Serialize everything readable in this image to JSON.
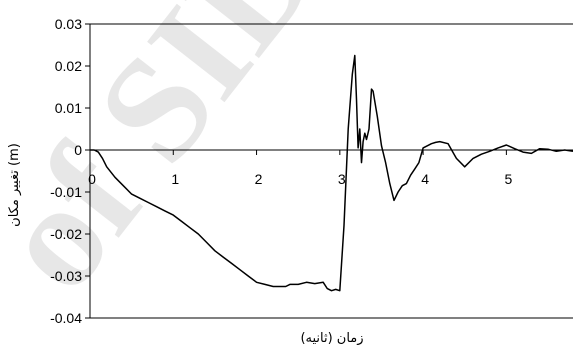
{
  "chart_data": {
    "type": "line",
    "watermark": "of SID",
    "ylabel": "تغییر مکان (m)",
    "xlabel": "زمان (ثانیه)",
    "xlim": [
      0,
      5.8
    ],
    "ylim": [
      -0.04,
      0.03
    ],
    "xticks": [
      0,
      1,
      2,
      3,
      4,
      5
    ],
    "xtick_labels": [
      "0",
      "1",
      "2",
      "3",
      "4",
      "5"
    ],
    "yticks": [
      0.03,
      0.02,
      0.01,
      0,
      -0.01,
      -0.02,
      -0.03,
      -0.04
    ],
    "ytick_labels": [
      "0.03",
      "0.02",
      "0.01",
      "0",
      "-0.01",
      "-0.02",
      "-0.03",
      "-0.04"
    ],
    "grid": false,
    "line_color": "#000000",
    "series": [
      {
        "x": [
          0,
          0.05,
          0.1,
          0.15,
          0.2,
          0.3,
          0.4,
          0.5,
          0.6,
          0.7,
          0.8,
          0.9,
          1.0,
          1.1,
          1.2,
          1.3,
          1.4,
          1.5,
          1.6,
          1.7,
          1.8,
          1.9,
          2.0,
          2.1,
          2.2,
          2.3,
          2.35,
          2.4,
          2.5,
          2.6,
          2.7,
          2.8,
          2.85,
          2.9,
          2.95,
          3.0,
          3.05,
          3.1,
          3.15,
          3.18,
          3.2,
          3.22,
          3.24,
          3.26,
          3.28,
          3.3,
          3.32,
          3.35,
          3.38,
          3.4,
          3.45,
          3.5,
          3.55,
          3.6,
          3.65,
          3.7,
          3.75,
          3.8,
          3.85,
          3.9,
          3.95,
          4.0,
          4.05,
          4.1,
          4.15,
          4.2,
          4.3,
          4.4,
          4.5,
          4.6,
          4.7,
          4.8,
          4.9,
          5.0,
          5.1,
          5.2,
          5.3,
          5.4,
          5.5,
          5.6,
          5.7,
          5.8
        ],
        "y": [
          0,
          0,
          -0.0005,
          -0.002,
          -0.004,
          -0.0065,
          -0.0085,
          -0.0105,
          -0.0115,
          -0.0125,
          -0.0135,
          -0.0145,
          -0.0155,
          -0.017,
          -0.0185,
          -0.02,
          -0.022,
          -0.024,
          -0.0255,
          -0.027,
          -0.0285,
          -0.03,
          -0.0315,
          -0.032,
          -0.0325,
          -0.0325,
          -0.0325,
          -0.032,
          -0.032,
          -0.0315,
          -0.0318,
          -0.0315,
          -0.033,
          -0.0335,
          -0.0332,
          -0.0335,
          -0.018,
          0.005,
          0.018,
          0.0225,
          0.012,
          0.0005,
          0.005,
          -0.003,
          0.002,
          0.004,
          0.0025,
          0.005,
          0.0145,
          0.014,
          0.008,
          0.001,
          -0.003,
          -0.008,
          -0.012,
          -0.01,
          -0.0085,
          -0.008,
          -0.006,
          -0.0045,
          -0.003,
          0.0005,
          0.001,
          0.0015,
          0.0018,
          0.002,
          0.0015,
          -0.002,
          -0.004,
          -0.002,
          -0.001,
          -0.0003,
          0.0005,
          0.0012,
          0.0003,
          -0.0005,
          -0.0008,
          0.0003,
          0.0002,
          -0.0003,
          0,
          -0.0003
        ]
      }
    ]
  }
}
